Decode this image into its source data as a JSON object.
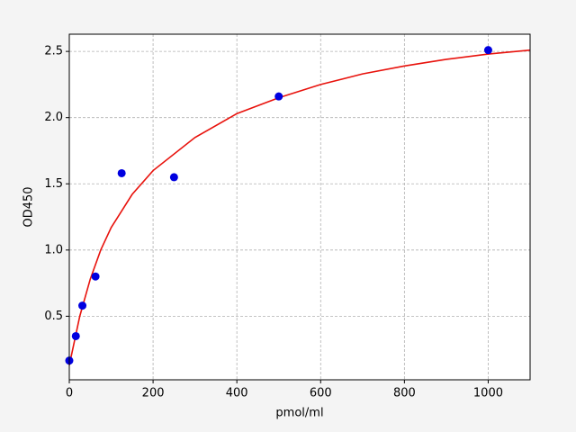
{
  "chart_data": {
    "type": "scatter",
    "xlabel": "pmol/ml",
    "ylabel": "OD450",
    "xlim": [
      0,
      1100
    ],
    "ylim": [
      0.02,
      2.63
    ],
    "xticks": [
      0,
      200,
      400,
      600,
      800,
      1000
    ],
    "yticks": [
      0.5,
      {
        "value": 1.0,
        "label": "1.0"
      },
      1.5,
      {
        "value": 2.0,
        "label": "2.0"
      },
      2.5
    ],
    "grid": true,
    "series": [
      {
        "type": "line",
        "color": "#e8120c",
        "x": [
          0,
          25,
          50,
          75,
          100,
          150,
          200,
          300,
          400,
          500,
          600,
          700,
          800,
          900,
          1000,
          1100
        ],
        "values": [
          0.13,
          0.5,
          0.78,
          1.0,
          1.17,
          1.42,
          1.6,
          1.85,
          2.03,
          2.15,
          2.25,
          2.33,
          2.39,
          2.44,
          2.48,
          2.51
        ]
      },
      {
        "type": "scatter",
        "color": "#0000e0",
        "x": [
          0,
          15.6,
          31.25,
          62.5,
          125,
          250,
          500,
          1000
        ],
        "values": [
          0.165,
          0.35,
          0.58,
          0.8,
          1.58,
          1.55,
          2.16,
          2.51
        ]
      }
    ]
  }
}
